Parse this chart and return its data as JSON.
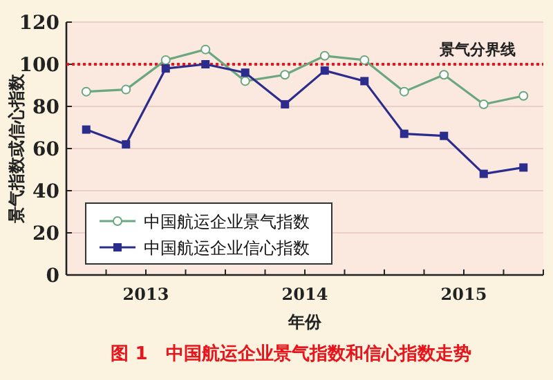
{
  "chart_data": {
    "type": "line",
    "title": "图 1　中国航运企业景气指数和信心指数走势",
    "xlabel": "年份",
    "ylabel": "景气指数或信心指数",
    "x": [
      2013.125,
      2013.375,
      2013.625,
      2013.875,
      2014.125,
      2014.375,
      2014.625,
      2014.875,
      2015.125,
      2015.375,
      2015.625,
      2015.875
    ],
    "xlim": [
      2013,
      2016
    ],
    "xticks": [
      {
        "value": 2013,
        "label": null
      },
      {
        "value": 2013.25,
        "label": null
      },
      {
        "value": 2013.5,
        "label": "2013"
      },
      {
        "value": 2013.75,
        "label": null
      },
      {
        "value": 2014,
        "label": null
      },
      {
        "value": 2014.25,
        "label": null
      },
      {
        "value": 2014.5,
        "label": "2014"
      },
      {
        "value": 2014.75,
        "label": null
      },
      {
        "value": 2015,
        "label": null
      },
      {
        "value": 2015.25,
        "label": null
      },
      {
        "value": 2015.5,
        "label": "2015"
      },
      {
        "value": 2015.75,
        "label": null
      },
      {
        "value": 2016,
        "label": null
      }
    ],
    "ylim": [
      0,
      120
    ],
    "yticks": [
      0,
      20,
      40,
      60,
      80,
      100,
      120
    ],
    "grid": "y",
    "legend": "bottom left",
    "series": [
      {
        "name": "中国航运企业景气指数",
        "color": "#6aa77e",
        "marker": "circle",
        "values": [
          87,
          88,
          102,
          107,
          92,
          95,
          104,
          102,
          87,
          95,
          81,
          85
        ]
      },
      {
        "name": "中国航运企业信心指数",
        "color": "#2b2c8c",
        "marker": "square",
        "values": [
          69,
          62,
          98,
          100,
          96,
          81,
          97,
          92,
          67,
          66,
          48,
          51
        ]
      }
    ],
    "ref_lines": [
      {
        "axis": "y",
        "value": 100,
        "label": "景气分界线",
        "color": "#e8141c",
        "line_style": "dotted"
      }
    ]
  }
}
